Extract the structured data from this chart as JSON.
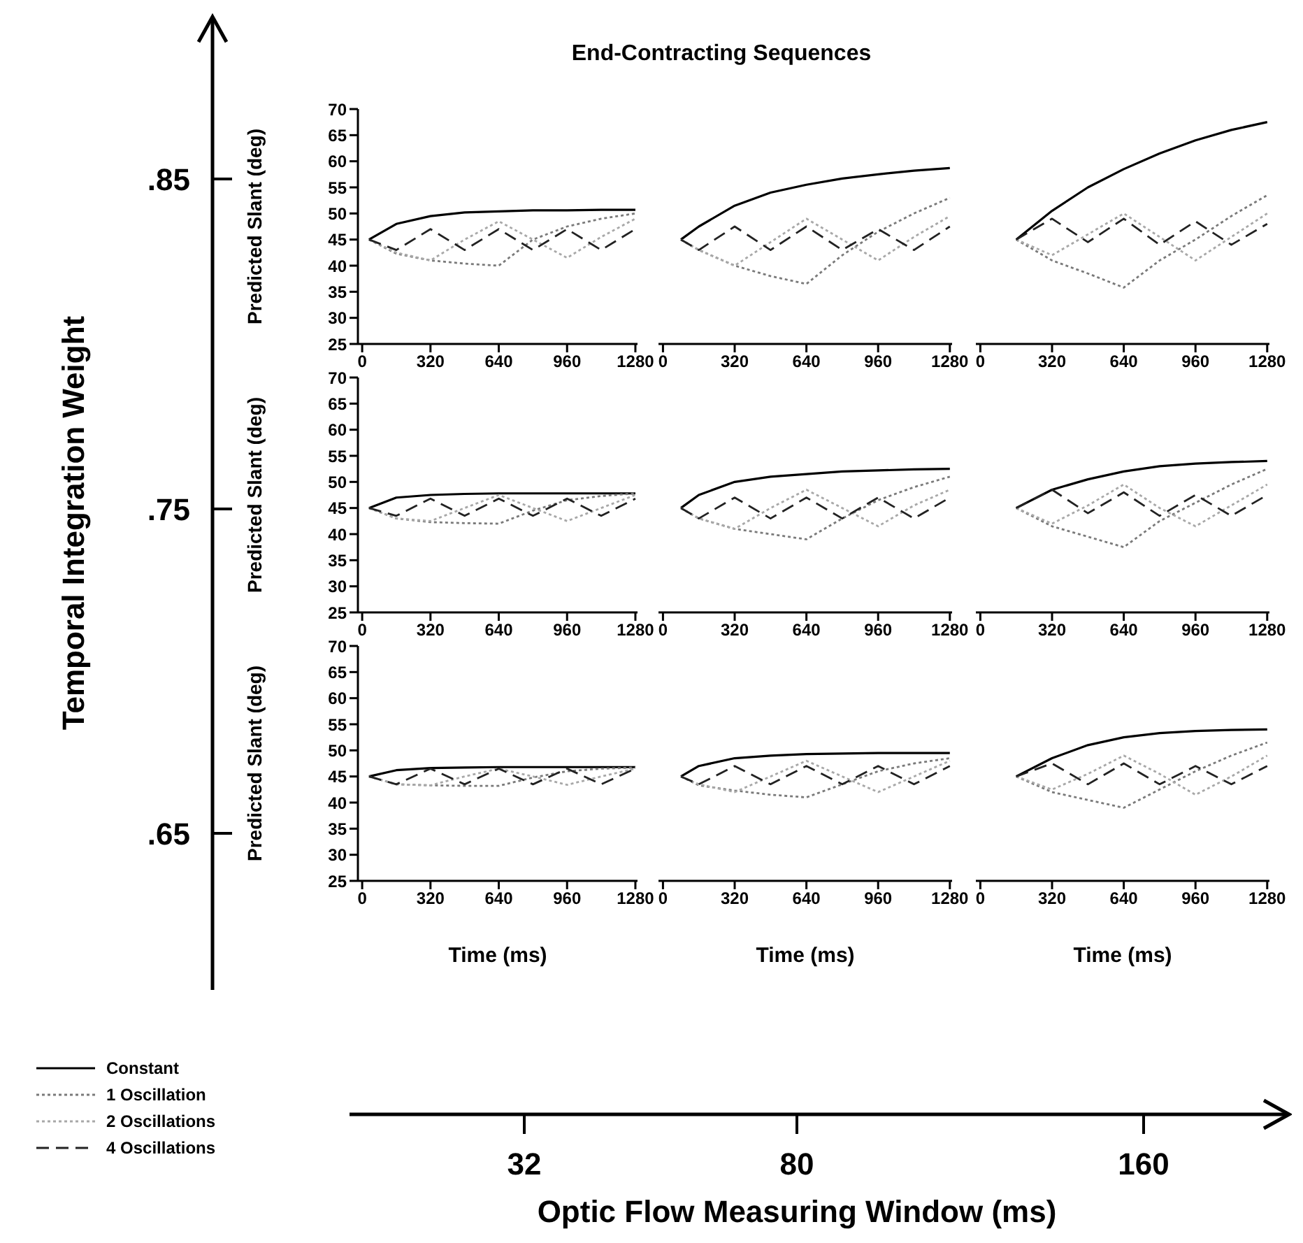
{
  "chart_data": [
    {
      "type": "line",
      "title": "End-Contracting Sequences",
      "ylabel": "Predicted Slant (deg)",
      "x": [
        32,
        160,
        320,
        480,
        640,
        800,
        960,
        1120,
        1280
      ],
      "xlim": [
        -20,
        1290
      ],
      "xticks": [
        0,
        320,
        640,
        960,
        1280
      ],
      "ylim": [
        25,
        70
      ],
      "yticks": [
        25,
        30,
        35,
        40,
        45,
        50,
        55,
        60,
        65,
        70
      ],
      "series": [
        {
          "color": "#000000",
          "line_style": "solid",
          "values": [
            45,
            48,
            49.5,
            50.2,
            50.4,
            50.6,
            50.6,
            50.7,
            50.7
          ]
        },
        {
          "color": "#7a7a7a",
          "line_style": "dotted",
          "values": [
            45,
            42.3,
            41,
            40.4,
            40,
            45,
            47.5,
            49,
            50
          ]
        },
        {
          "color": "#a8a8a8",
          "line_style": "dotted",
          "values": [
            45,
            42.5,
            41,
            45,
            48.5,
            45,
            41.5,
            45.5,
            49
          ]
        },
        {
          "color": "#222222",
          "line_style": "dashed",
          "values": [
            45,
            43,
            47,
            43,
            47,
            43,
            47,
            43,
            47
          ]
        }
      ]
    },
    {
      "type": "line",
      "tick_labels": "x",
      "x": [
        80,
        160,
        320,
        480,
        640,
        800,
        960,
        1120,
        1280
      ],
      "xlim": [
        -20,
        1290
      ],
      "xticks": [
        0,
        320,
        640,
        960,
        1280
      ],
      "ylim": [
        25,
        70
      ],
      "series": [
        {
          "color": "#000000",
          "line_style": "solid",
          "values": [
            45,
            47.5,
            51.5,
            54,
            55.5,
            56.7,
            57.5,
            58.2,
            58.7
          ]
        },
        {
          "color": "#7a7a7a",
          "line_style": "dotted",
          "values": [
            45,
            43,
            40,
            38,
            36.5,
            42,
            46.5,
            50,
            53
          ]
        },
        {
          "color": "#a8a8a8",
          "line_style": "dotted",
          "values": [
            45,
            43,
            40,
            44.5,
            49,
            45,
            41,
            45.5,
            49.5
          ]
        },
        {
          "color": "#222222",
          "line_style": "dashed",
          "values": [
            45,
            43,
            47.5,
            43,
            47.5,
            43,
            47,
            43,
            47.5
          ]
        }
      ]
    },
    {
      "type": "line",
      "tick_labels": "x",
      "x": [
        160,
        320,
        480,
        640,
        800,
        960,
        1120,
        1280
      ],
      "xlim": [
        -20,
        1290
      ],
      "xticks": [
        0,
        320,
        640,
        960,
        1280
      ],
      "ylim": [
        25,
        70
      ],
      "series": [
        {
          "color": "#000000",
          "line_style": "solid",
          "values": [
            45,
            50.5,
            55,
            58.5,
            61.5,
            64,
            66,
            67.5
          ]
        },
        {
          "color": "#7a7a7a",
          "line_style": "dotted",
          "values": [
            45,
            41,
            38.5,
            35.8,
            41,
            45,
            49.5,
            53.5
          ]
        },
        {
          "color": "#a8a8a8",
          "line_style": "dotted",
          "values": [
            45,
            42,
            46,
            50,
            45.5,
            41,
            45.5,
            50
          ]
        },
        {
          "color": "#222222",
          "line_style": "dashed",
          "values": [
            45,
            49,
            44.5,
            49,
            44,
            48.5,
            44,
            48
          ]
        }
      ]
    },
    {
      "type": "line",
      "ylabel": "Predicted Slant (deg)",
      "x": [
        32,
        160,
        320,
        480,
        640,
        800,
        960,
        1120,
        1280
      ],
      "xlim": [
        -20,
        1290
      ],
      "xticks": [
        0,
        320,
        640,
        960,
        1280
      ],
      "ylim": [
        25,
        70
      ],
      "yticks": [
        25,
        30,
        35,
        40,
        45,
        50,
        55,
        60,
        65,
        70
      ],
      "series": [
        {
          "color": "#000000",
          "line_style": "solid",
          "values": [
            45,
            47,
            47.5,
            47.7,
            47.8,
            47.8,
            47.8,
            47.8,
            47.8
          ]
        },
        {
          "color": "#7a7a7a",
          "line_style": "dotted",
          "values": [
            45,
            43,
            42.3,
            42.1,
            42,
            44.5,
            46.5,
            47.3,
            47.8
          ]
        },
        {
          "color": "#a8a8a8",
          "line_style": "dotted",
          "values": [
            45,
            43,
            42.5,
            45,
            47.5,
            45,
            42.5,
            45,
            47.5
          ]
        },
        {
          "color": "#222222",
          "line_style": "dashed",
          "values": [
            45,
            43.5,
            46.8,
            43.5,
            46.8,
            43.5,
            46.8,
            43.5,
            46.8
          ]
        }
      ]
    },
    {
      "type": "line",
      "tick_labels": "x",
      "x": [
        80,
        160,
        320,
        480,
        640,
        800,
        960,
        1120,
        1280
      ],
      "xlim": [
        -20,
        1290
      ],
      "xticks": [
        0,
        320,
        640,
        960,
        1280
      ],
      "ylim": [
        25,
        70
      ],
      "series": [
        {
          "color": "#000000",
          "line_style": "solid",
          "values": [
            45,
            47.5,
            50,
            51,
            51.5,
            52,
            52.2,
            52.4,
            52.5
          ]
        },
        {
          "color": "#7a7a7a",
          "line_style": "dotted",
          "values": [
            45,
            43,
            41,
            40,
            39,
            43,
            46.5,
            49,
            51
          ]
        },
        {
          "color": "#a8a8a8",
          "line_style": "dotted",
          "values": [
            45,
            43,
            41,
            45,
            48.5,
            45,
            41.5,
            45.5,
            48.5
          ]
        },
        {
          "color": "#222222",
          "line_style": "dashed",
          "values": [
            45,
            43,
            47,
            43,
            47,
            43,
            47,
            43,
            47
          ]
        }
      ]
    },
    {
      "type": "line",
      "tick_labels": "x",
      "x": [
        160,
        320,
        480,
        640,
        800,
        960,
        1120,
        1280
      ],
      "xlim": [
        -20,
        1290
      ],
      "xticks": [
        0,
        320,
        640,
        960,
        1280
      ],
      "ylim": [
        25,
        70
      ],
      "series": [
        {
          "color": "#000000",
          "line_style": "solid",
          "values": [
            45,
            48.5,
            50.5,
            52,
            53,
            53.5,
            53.8,
            54
          ]
        },
        {
          "color": "#7a7a7a",
          "line_style": "dotted",
          "values": [
            45,
            41.5,
            39.5,
            37.5,
            42.5,
            46,
            49.5,
            52.5
          ]
        },
        {
          "color": "#a8a8a8",
          "line_style": "dotted",
          "values": [
            45,
            42,
            45.5,
            49.5,
            45,
            41.5,
            45.5,
            49.5
          ]
        },
        {
          "color": "#222222",
          "line_style": "dashed",
          "values": [
            45,
            48.5,
            44,
            48,
            43.5,
            47.5,
            43.5,
            47.5
          ]
        }
      ]
    },
    {
      "type": "line",
      "ylabel": "Predicted Slant (deg)",
      "xlabel": "Time (ms)",
      "legend": "bottom left",
      "x": [
        32,
        160,
        320,
        480,
        640,
        800,
        960,
        1120,
        1280
      ],
      "xlim": [
        -20,
        1290
      ],
      "xticks": [
        0,
        320,
        640,
        960,
        1280
      ],
      "ylim": [
        25,
        70
      ],
      "yticks": [
        25,
        30,
        35,
        40,
        45,
        50,
        55,
        60,
        65,
        70
      ],
      "series": [
        {
          "name": "Constant",
          "color": "#000000",
          "line_style": "solid",
          "values": [
            45,
            46.2,
            46.6,
            46.7,
            46.8,
            46.8,
            46.8,
            46.8,
            46.8
          ]
        },
        {
          "name": "1 Oscillation",
          "color": "#7a7a7a",
          "line_style": "dotted",
          "values": [
            45,
            43.5,
            43.3,
            43.2,
            43.2,
            44.8,
            46,
            46.5,
            46.7
          ]
        },
        {
          "name": "2 Oscillations",
          "color": "#a8a8a8",
          "line_style": "dotted",
          "values": [
            45,
            43.5,
            43.3,
            45,
            46.5,
            45,
            43.4,
            45,
            46.5
          ]
        },
        {
          "name": "4 Oscillations",
          "color": "#222222",
          "line_style": "dashed",
          "values": [
            45,
            43.5,
            46.5,
            43.5,
            46.5,
            43.5,
            46.5,
            43.5,
            46.5
          ]
        }
      ]
    },
    {
      "type": "line",
      "tick_labels": "x",
      "xlabel": "Time (ms)",
      "x": [
        80,
        160,
        320,
        480,
        640,
        800,
        960,
        1120,
        1280
      ],
      "xlim": [
        -20,
        1290
      ],
      "xticks": [
        0,
        320,
        640,
        960,
        1280
      ],
      "ylim": [
        25,
        70
      ],
      "series": [
        {
          "color": "#000000",
          "line_style": "solid",
          "values": [
            45,
            47,
            48.5,
            49,
            49.3,
            49.4,
            49.5,
            49.5,
            49.5
          ]
        },
        {
          "color": "#7a7a7a",
          "line_style": "dotted",
          "values": [
            45,
            43.3,
            42.3,
            41.5,
            41,
            43.5,
            46,
            47.5,
            48.5
          ]
        },
        {
          "color": "#a8a8a8",
          "line_style": "dotted",
          "values": [
            45,
            43.5,
            42,
            45,
            48,
            45,
            42,
            45,
            48
          ]
        },
        {
          "color": "#222222",
          "line_style": "dashed",
          "values": [
            45,
            43.5,
            47,
            43.5,
            47,
            43.5,
            47,
            43.5,
            47
          ]
        }
      ]
    },
    {
      "type": "line",
      "tick_labels": "x",
      "xlabel": "Time (ms)",
      "x": [
        160,
        320,
        480,
        640,
        800,
        960,
        1120,
        1280
      ],
      "xlim": [
        -20,
        1290
      ],
      "xticks": [
        0,
        320,
        640,
        960,
        1280
      ],
      "ylim": [
        25,
        70
      ],
      "series": [
        {
          "color": "#000000",
          "line_style": "solid",
          "values": [
            45,
            48.5,
            51,
            52.5,
            53.3,
            53.7,
            53.9,
            54
          ]
        },
        {
          "color": "#7a7a7a",
          "line_style": "dotted",
          "values": [
            45,
            42,
            40.5,
            39,
            42.5,
            46,
            49,
            51.5
          ]
        },
        {
          "color": "#a8a8a8",
          "line_style": "dotted",
          "values": [
            45,
            42.5,
            45.5,
            49,
            45.5,
            41.5,
            45,
            49
          ]
        },
        {
          "color": "#222222",
          "line_style": "dashed",
          "values": [
            45,
            47.5,
            43.5,
            47.5,
            43.5,
            47,
            43.5,
            47
          ]
        }
      ]
    },
    {
      "type": "other",
      "xlabel": "Optic Flow Measuring Window (ms)",
      "ylabel": "Temporal Integration Weight",
      "annotations": [
        ".85",
        ".75",
        ".65",
        "32",
        "80",
        "160"
      ]
    }
  ]
}
